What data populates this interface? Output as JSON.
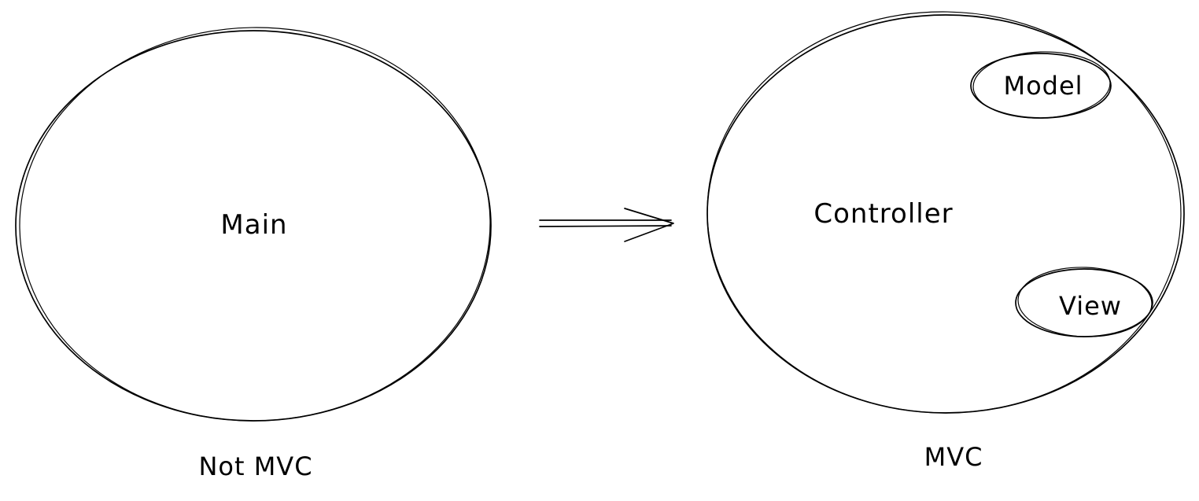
{
  "left_group": {
    "node_label": "Main",
    "caption": "Not MVC"
  },
  "right_group": {
    "container_label": "Controller",
    "inner_nodes": [
      "Model",
      "View"
    ],
    "caption": "MVC"
  },
  "colors": {
    "stroke": "#000000",
    "background": "#ffffff"
  }
}
